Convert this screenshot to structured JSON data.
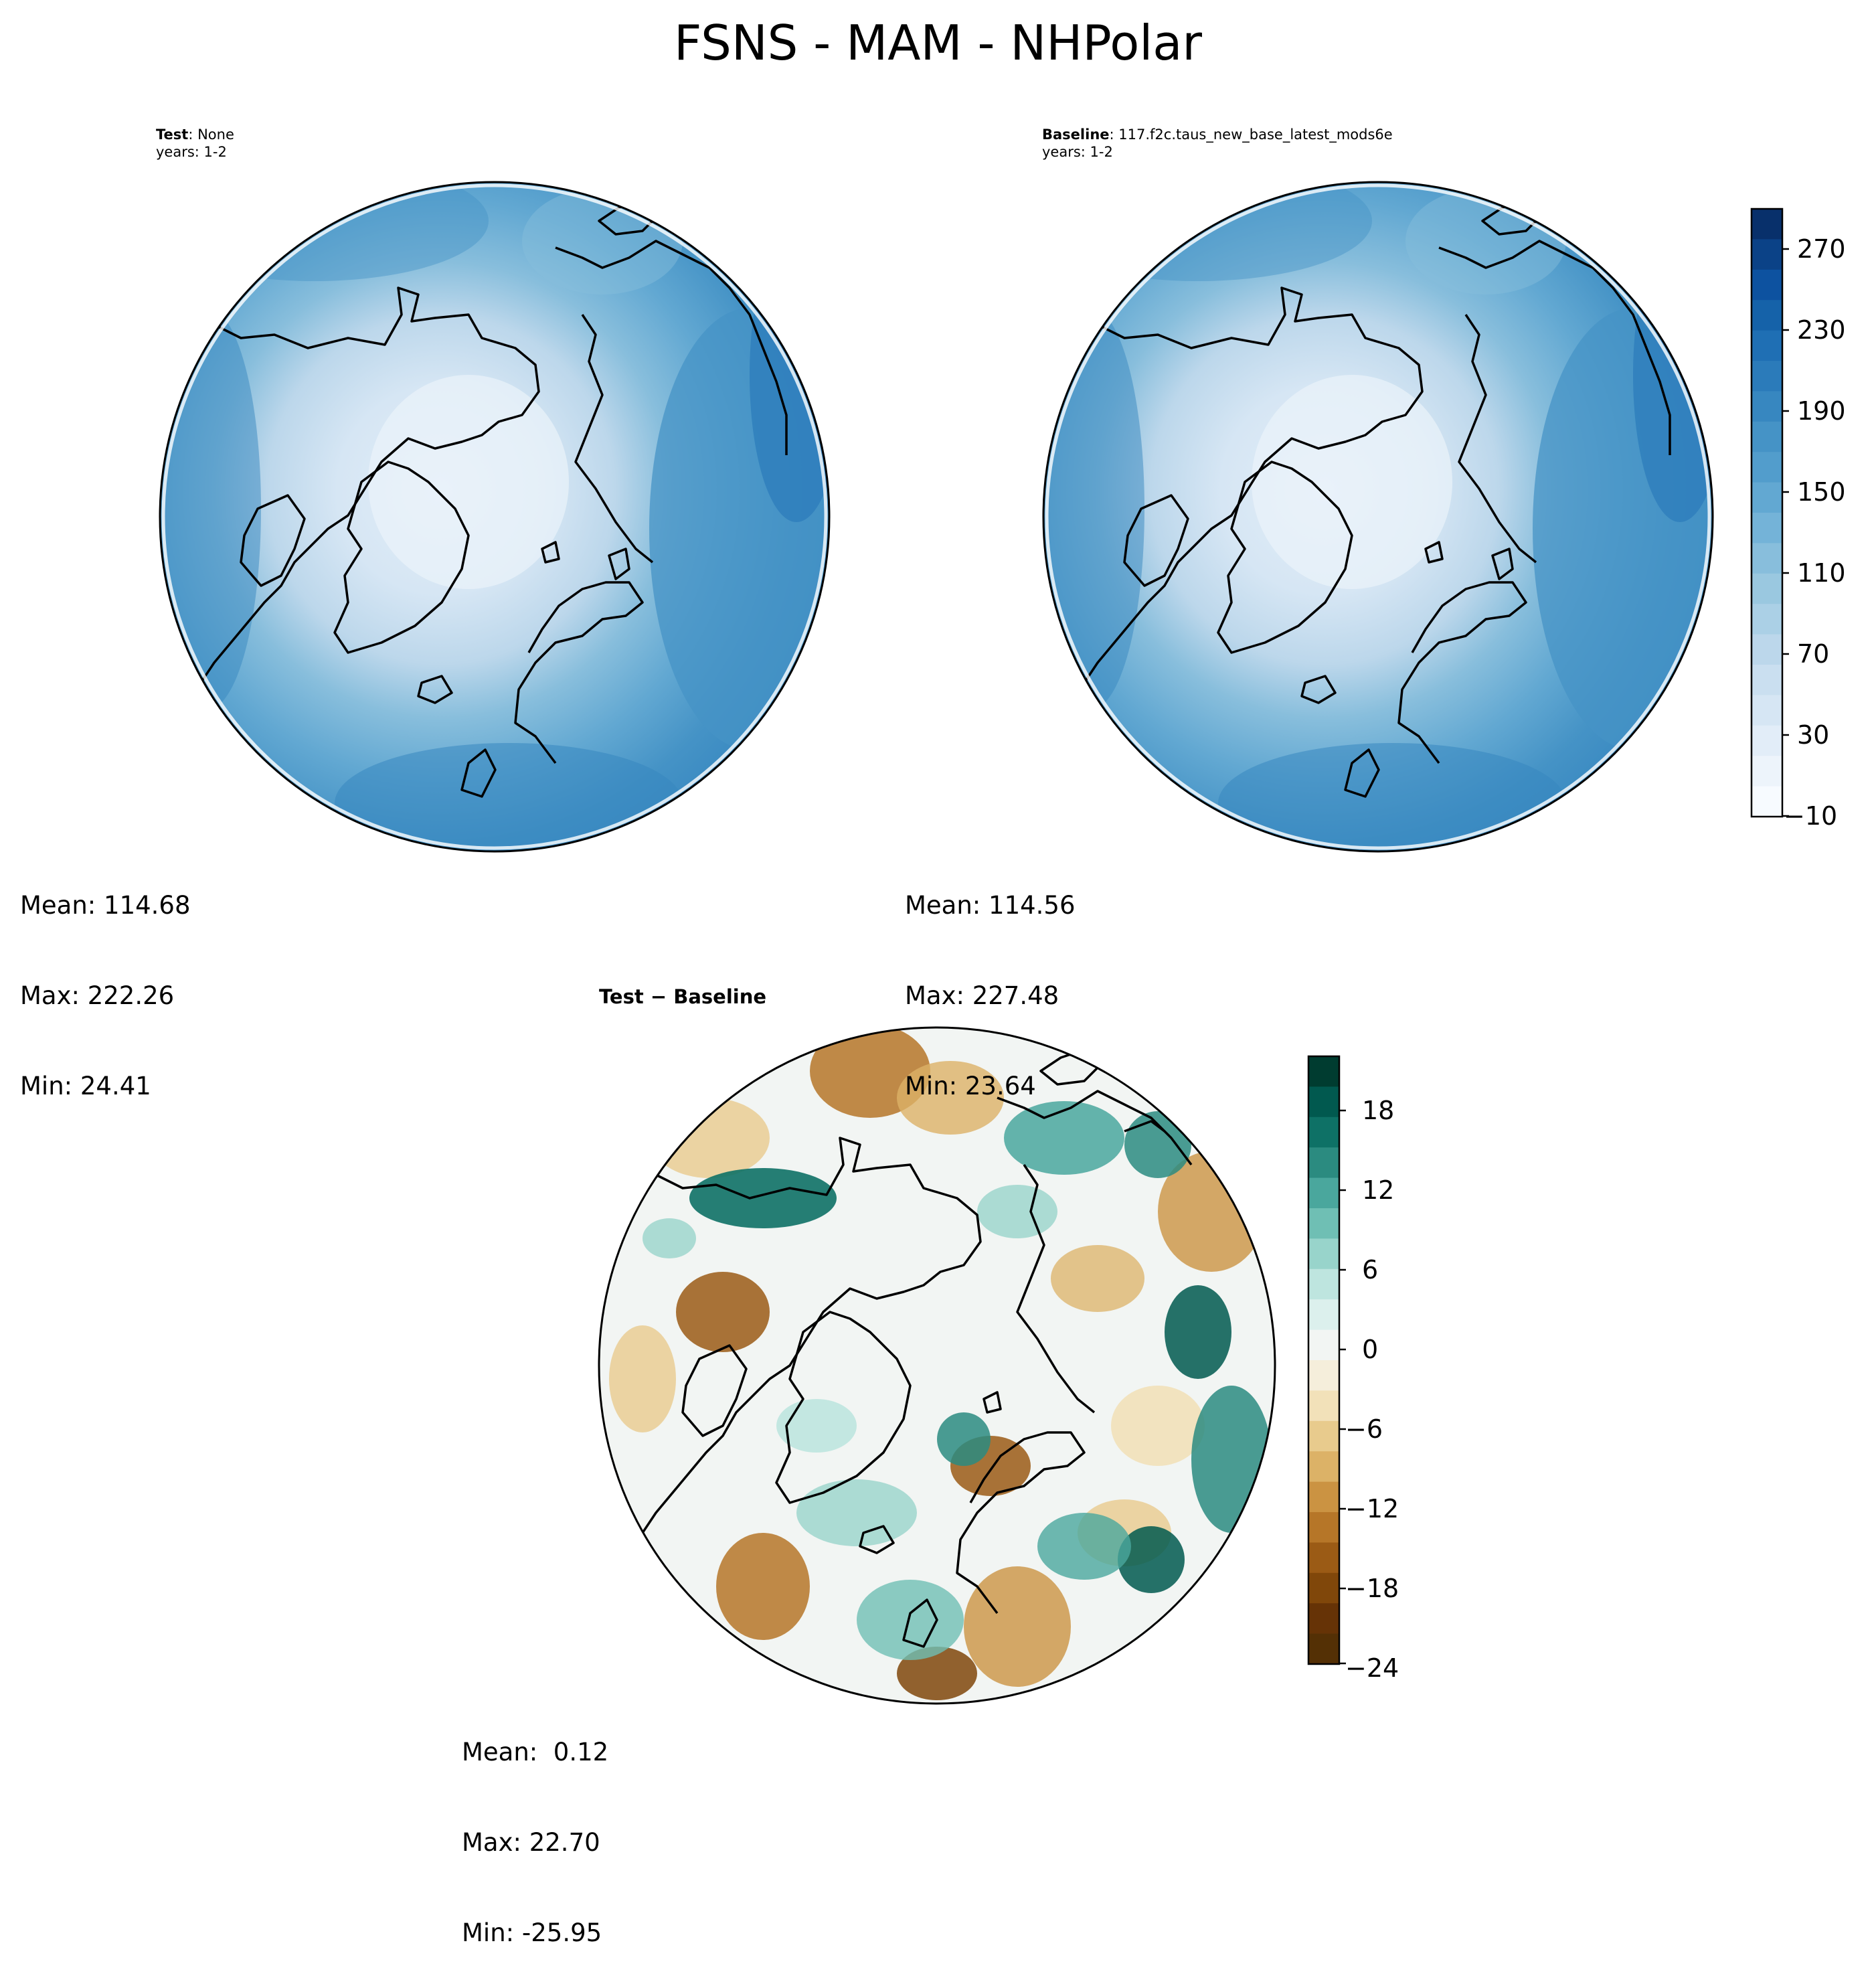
{
  "figure": {
    "title": "FSNS - MAM - NHPolar"
  },
  "panels": {
    "test": {
      "label_bold": "Test",
      "label_rest": ": None",
      "years": "years: 1-2",
      "mean": "Mean: 114.68",
      "max": "Max: 222.26",
      "min": "Min: 24.41"
    },
    "baseline": {
      "label_bold": "Baseline",
      "label_rest": ": 117.f2c.taus_new_base_latest_mods6e",
      "years": "years: 1-2",
      "mean": "Mean: 114.56",
      "max": "Max: 227.48",
      "min": "Min: 23.64"
    },
    "diff": {
      "title": "Test − Baseline",
      "mean": "Mean:  0.12",
      "max": "Max: 22.70",
      "min": "Min: -25.95"
    }
  },
  "colorbars": {
    "main": {
      "ticks": [
        "270",
        "230",
        "190",
        "150",
        "110",
        "70",
        "30",
        "−10"
      ],
      "colors": [
        "#08306b",
        "#0b4287",
        "#0d52a0",
        "#1562a9",
        "#1f6fb4",
        "#2b7bba",
        "#3787c0",
        "#4593c6",
        "#529dcc",
        "#62a8d2",
        "#74b3d8",
        "#88bedc",
        "#9ac8e0",
        "#abd0e6",
        "#bcd7eb",
        "#cadff0",
        "#d6e6f4",
        "#e2edf8",
        "#edf4fb",
        "#f7fbff"
      ]
    },
    "diff": {
      "ticks": [
        "18",
        "12",
        "6",
        "0",
        "−6",
        "−12",
        "−18",
        "−24"
      ],
      "colors": [
        "#003c30",
        "#01594f",
        "#0e7166",
        "#2b8b80",
        "#4aa79d",
        "#6fbfb4",
        "#98d4cb",
        "#bee5df",
        "#dcf0ed",
        "#f2f5f3",
        "#f5eedb",
        "#f2e1b9",
        "#e8cb8d",
        "#dcb267",
        "#cb9342",
        "#b67628",
        "#9b5b15",
        "#80470a",
        "#663306",
        "#543005"
      ]
    }
  },
  "chart_data": [
    {
      "type": "heatmap",
      "title": "Test: None",
      "subtitle": "years: 1-2",
      "projection": "north polar stereographic",
      "colorbar_range": [
        -10,
        290
      ],
      "colorbar_ticks": [
        -10,
        30,
        70,
        110,
        150,
        190,
        230,
        270
      ],
      "stats": {
        "mean": 114.68,
        "max": 222.26,
        "min": 24.41
      }
    },
    {
      "type": "heatmap",
      "title": "Baseline: 117.f2c.taus_new_base_latest_mods6e",
      "subtitle": "years: 1-2",
      "projection": "north polar stereographic",
      "colorbar_range": [
        -10,
        290
      ],
      "colorbar_ticks": [
        -10,
        30,
        70,
        110,
        150,
        190,
        230,
        270
      ],
      "stats": {
        "mean": 114.56,
        "max": 227.48,
        "min": 23.64
      }
    },
    {
      "type": "heatmap",
      "title": "Test − Baseline",
      "projection": "north polar stereographic",
      "colorbar_range": [
        -24,
        22
      ],
      "colorbar_ticks": [
        -24,
        -18,
        -12,
        -6,
        0,
        6,
        12,
        18
      ],
      "stats": {
        "mean": 0.12,
        "max": 22.7,
        "min": -25.95
      }
    }
  ]
}
